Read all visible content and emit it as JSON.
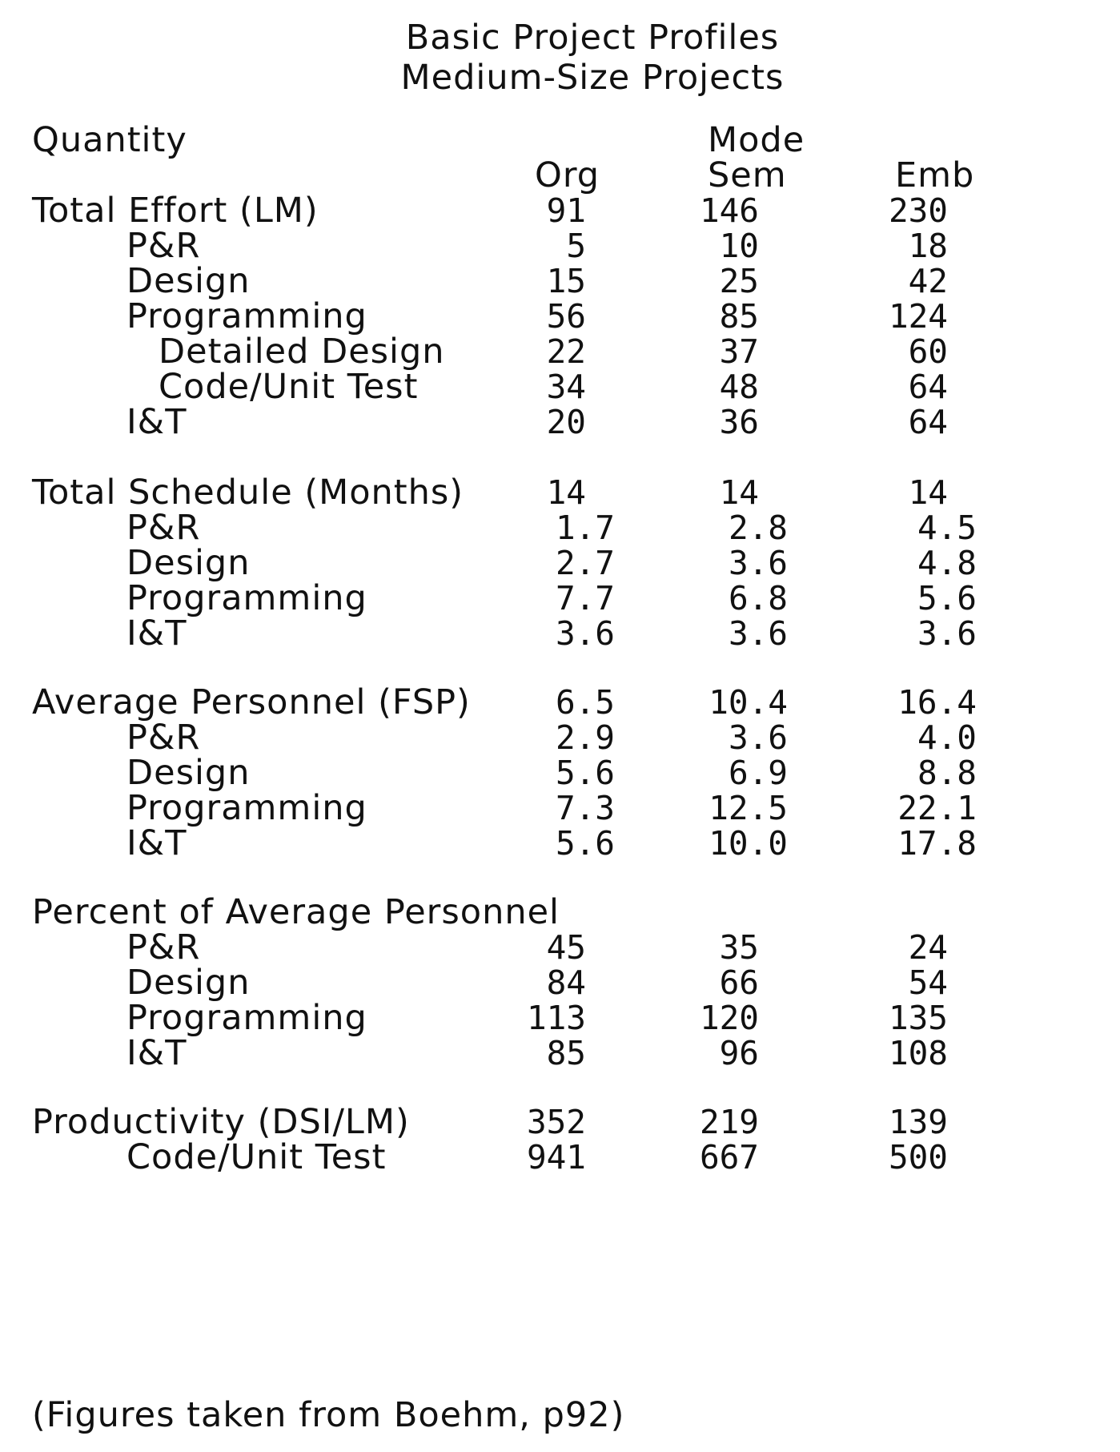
{
  "title": "Basic Project Profiles",
  "subtitle": "Medium-Size Projects",
  "header": {
    "quantity_label": "Quantity",
    "mode_label": "Mode",
    "columns": [
      "Org",
      "Sem",
      "Emb"
    ]
  },
  "rows": [
    {
      "label": "Total Effort (LM)",
      "level": 0,
      "values": [
        "91",
        "146",
        "230"
      ]
    },
    {
      "label": "P&R",
      "level": 1,
      "values": [
        "5",
        "10",
        "18"
      ]
    },
    {
      "label": "Design",
      "level": 1,
      "values": [
        "15",
        "25",
        "42"
      ]
    },
    {
      "label": "Programming",
      "level": 1,
      "values": [
        "56",
        "85",
        "124"
      ]
    },
    {
      "label": "Detailed Design",
      "level": 2,
      "values": [
        "22",
        "37",
        "60"
      ]
    },
    {
      "label": "Code/Unit Test",
      "level": 2,
      "values": [
        "34",
        "48",
        "64"
      ]
    },
    {
      "label": "I&T",
      "level": 1,
      "values": [
        "20",
        "36",
        "64"
      ]
    },
    {
      "label": "Total Schedule (Months)",
      "level": 0,
      "values": [
        "14",
        "14",
        "14"
      ]
    },
    {
      "label": "P&R",
      "level": 1,
      "values": [
        "1.7",
        "2.8",
        "4.5"
      ]
    },
    {
      "label": "Design",
      "level": 1,
      "values": [
        "2.7",
        "3.6",
        "4.8"
      ]
    },
    {
      "label": "Programming",
      "level": 1,
      "values": [
        "7.7",
        "6.8",
        "5.6"
      ]
    },
    {
      "label": "I&T",
      "level": 1,
      "values": [
        "3.6",
        "3.6",
        "3.6"
      ]
    },
    {
      "label": "Average Personnel (FSP)",
      "level": 0,
      "values": [
        "6.5",
        "10.4",
        "16.4"
      ]
    },
    {
      "label": "P&R",
      "level": 1,
      "values": [
        "2.9",
        "3.6",
        "4.0"
      ]
    },
    {
      "label": "Design",
      "level": 1,
      "values": [
        "5.6",
        "6.9",
        "8.8"
      ]
    },
    {
      "label": "Programming",
      "level": 1,
      "values": [
        "7.3",
        "12.5",
        "22.1"
      ]
    },
    {
      "label": "I&T",
      "level": 1,
      "values": [
        "5.6",
        "10.0",
        "17.8"
      ]
    },
    {
      "label": "Percent of Average Personnel",
      "level": 0,
      "values": [
        "",
        "",
        ""
      ]
    },
    {
      "label": "P&R",
      "level": 1,
      "values": [
        "45",
        "35",
        "24"
      ]
    },
    {
      "label": "Design",
      "level": 1,
      "values": [
        "84",
        "66",
        "54"
      ]
    },
    {
      "label": "Programming",
      "level": 1,
      "values": [
        "113",
        "120",
        "135"
      ]
    },
    {
      "label": "I&T",
      "level": 1,
      "values": [
        "85",
        "96",
        "108"
      ]
    },
    {
      "label": "Productivity (DSI/LM)",
      "level": 0,
      "values": [
        "352",
        "219",
        "139"
      ]
    },
    {
      "label": "Code/Unit Test",
      "level": 1,
      "values": [
        "941",
        "667",
        "500"
      ]
    }
  ],
  "footnote": "(Figures taken from Boehm, p92)"
}
